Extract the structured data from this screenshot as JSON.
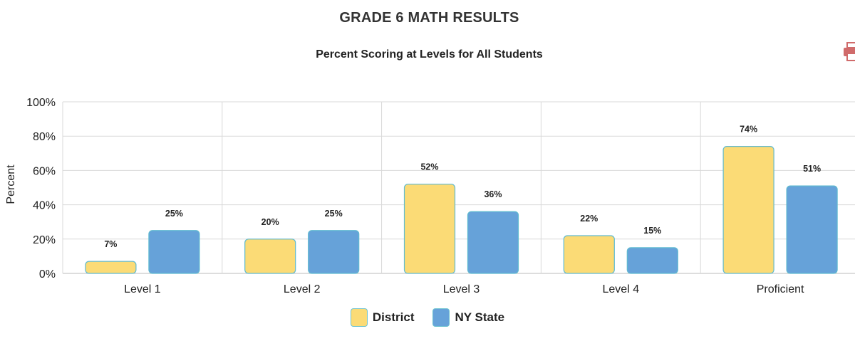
{
  "header": {
    "title": "GRADE 6 MATH RESULTS",
    "subtitle": "Percent Scoring at Levels for All Students"
  },
  "colors": {
    "district": "#fbdb76",
    "state": "#66a2d9",
    "bar_border": "#5fbad0",
    "grid": "#d9d9d9",
    "print_icon": "#d06b6b"
  },
  "icons": {
    "print": "print-icon"
  },
  "chart_data": {
    "type": "bar",
    "ylabel": "Percent",
    "xlabel": "",
    "ylim": [
      0,
      100
    ],
    "yticks": [
      "0%",
      "20%",
      "40%",
      "60%",
      "80%",
      "100%"
    ],
    "ytick_values": [
      0,
      20,
      40,
      60,
      80,
      100
    ],
    "grid": true,
    "legend_position": "bottom",
    "categories": [
      "Level 1",
      "Level 2",
      "Level 3",
      "Level 4",
      "Proficient"
    ],
    "series": [
      {
        "name": "District",
        "values": [
          7,
          20,
          52,
          22,
          74
        ],
        "labels": [
          "7%",
          "20%",
          "52%",
          "22%",
          "74%"
        ]
      },
      {
        "name": "NY State",
        "values": [
          25,
          25,
          36,
          15,
          51
        ],
        "labels": [
          "25%",
          "25%",
          "36%",
          "15%",
          "51%"
        ]
      }
    ]
  }
}
